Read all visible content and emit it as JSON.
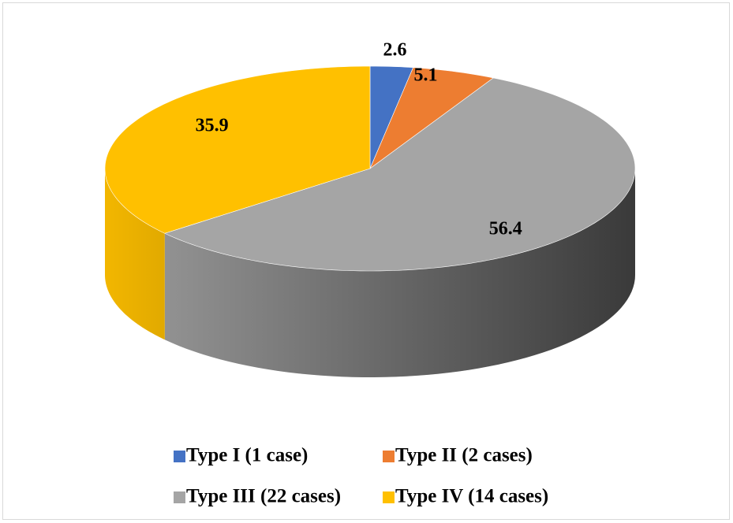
{
  "chart_data": {
    "type": "pie",
    "categories": [
      "Type I (1 case)",
      "Type II (2 cases)",
      "Type III (22 cases)",
      "Type IV (14 cases)"
    ],
    "values": [
      2.6,
      5.1,
      56.4,
      35.9
    ],
    "colors": [
      "#4472c4",
      "#ed7d31",
      "#a5a5a5",
      "#ffc000"
    ],
    "legend": "bottom"
  }
}
